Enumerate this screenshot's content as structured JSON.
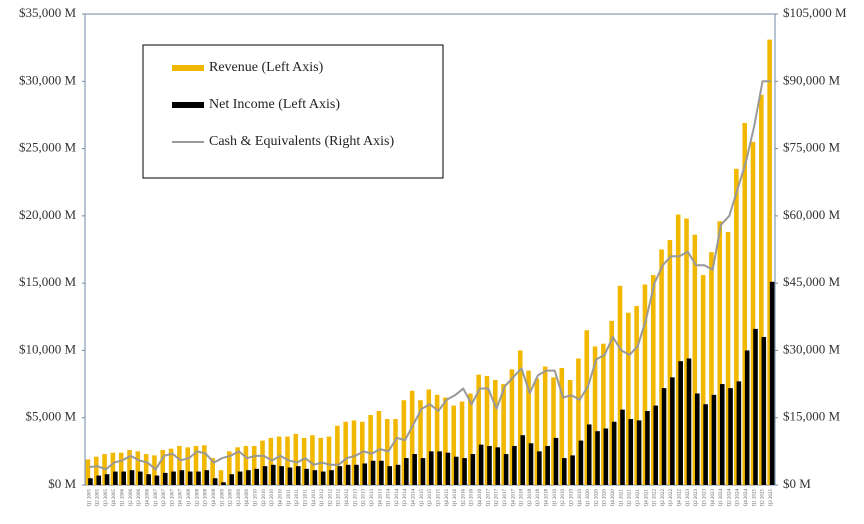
{
  "chart_data": {
    "type": "bar-line-dual-axis",
    "categories": [
      "Q1 2005",
      "Q2 2005",
      "Q3 2005",
      "Q4 2005",
      "Q1 2006",
      "Q2 2006",
      "Q3 2006",
      "Q4 2006",
      "Q1 2007",
      "Q2 2007",
      "Q3 2007",
      "Q4 2007",
      "Q1 2008",
      "Q2 2008",
      "Q3 2008",
      "Q4 2008",
      "Q1 2009",
      "Q2 2009",
      "Q3 2009",
      "Q4 2009",
      "Q1 2010",
      "Q2 2010",
      "Q3 2010",
      "Q4 2010",
      "Q1 2011",
      "Q2 2011",
      "Q3 2011",
      "Q4 2011",
      "Q1 2012",
      "Q2 2012",
      "Q3 2012",
      "Q4 2012",
      "Q1 2013",
      "Q2 2013",
      "Q3 2013",
      "Q4 2013",
      "Q1 2014",
      "Q2 2014",
      "Q3 2014",
      "Q4 2014",
      "Q1 2015",
      "Q2 2015",
      "Q3 2015",
      "Q4 2015",
      "Q1 2016",
      "Q2 2016",
      "Q3 2016",
      "Q4 2016",
      "Q1 2017",
      "Q2 2017",
      "Q3 2017",
      "Q4 2017",
      "Q1 2018",
      "Q2 2018",
      "Q3 2018",
      "Q4 2018",
      "Q1 2019",
      "Q2 2019",
      "Q3 2019",
      "Q4 2019",
      "Q1 2020",
      "Q2 2020",
      "Q3 2020",
      "Q4 2020",
      "Q1 2021",
      "Q2 2021",
      "Q3 2021",
      "Q4 2021",
      "Q1 2022",
      "Q2 2022",
      "Q3 2022",
      "Q4 2022",
      "Q1 2023",
      "Q2 2023",
      "Q3 2023",
      "Q4 2023",
      "Q1 2024",
      "Q2 2024",
      "Q3 2024",
      "Q4 2024",
      "Q1 2025",
      "Q2 2025",
      "Q3 2025"
    ],
    "series": [
      {
        "name": "Revenue (Left Axis)",
        "color": "#f2b800",
        "kind": "bar",
        "values": [
          1900,
          2100,
          2300,
          2400,
          2400,
          2600,
          2500,
          2300,
          2200,
          2600,
          2700,
          2900,
          2800,
          2900,
          2950,
          2000,
          1100,
          2500,
          2800,
          2900,
          2900,
          3300,
          3500,
          3600,
          3600,
          3800,
          3500,
          3700,
          3500,
          3600,
          4400,
          4700,
          4800,
          4700,
          5200,
          5500,
          4900,
          4900,
          6300,
          7000,
          6300,
          7100,
          6700,
          6500,
          5900,
          6200,
          6800,
          8200,
          8100,
          7800,
          7500,
          8600,
          10000,
          8500,
          7900,
          8800,
          8000,
          8700,
          7800,
          9400,
          11500,
          10300,
          10500,
          12200,
          14800,
          12800,
          13300,
          14900,
          15600,
          17500,
          18200,
          20100,
          19800,
          18600,
          15600,
          17300,
          19600,
          18800,
          23500,
          26900,
          25500,
          29000,
          33100
        ]
      },
      {
        "name": "Net Income (Left Axis)",
        "color": "#000000",
        "kind": "bar",
        "values": [
          500,
          700,
          800,
          1000,
          1000,
          1100,
          1000,
          800,
          700,
          900,
          1000,
          1100,
          1000,
          1000,
          1100,
          500,
          200,
          800,
          1000,
          1100,
          1200,
          1400,
          1500,
          1400,
          1300,
          1400,
          1200,
          1100,
          1000,
          1100,
          1400,
          1500,
          1500,
          1600,
          1800,
          1800,
          1400,
          1500,
          2000,
          2300,
          2000,
          2500,
          2500,
          2400,
          2100,
          2000,
          2300,
          3000,
          2900,
          2800,
          2300,
          2900,
          3700,
          3100,
          2500,
          2900,
          3500,
          2000,
          2200,
          3300,
          4500,
          4000,
          4200,
          4700,
          5600,
          4900,
          4800,
          5500,
          5900,
          7200,
          8000,
          9200,
          9400,
          6800,
          6000,
          6700,
          7500,
          7200,
          7700,
          10000,
          11600,
          11000,
          15100
        ]
      },
      {
        "name": "Cash & Equivalents (Right Axis)",
        "color": "#999999",
        "kind": "line",
        "axis": "y2",
        "values": [
          4000,
          4200,
          3500,
          5000,
          5500,
          6500,
          5500,
          5000,
          3500,
          6500,
          7000,
          5500,
          6000,
          7500,
          7000,
          5000,
          6000,
          6500,
          7500,
          6000,
          6500,
          6500,
          5500,
          6500,
          5500,
          5000,
          6000,
          4500,
          5000,
          4500,
          4500,
          6000,
          6500,
          7500,
          7000,
          8000,
          7500,
          10500,
          10000,
          13500,
          17000,
          18000,
          16500,
          19000,
          20000,
          21500,
          18000,
          21500,
          21500,
          17000,
          22000,
          24000,
          26000,
          20500,
          24500,
          25500,
          25500,
          19500,
          20000,
          19000,
          22000,
          28000,
          29000,
          33000,
          30000,
          29000,
          31000,
          37000,
          45000,
          49000,
          51000,
          51000,
          52000,
          49000,
          49000,
          48000,
          58000,
          60000,
          66000,
          72000,
          80000,
          90000,
          90000
        ]
      }
    ],
    "ylim": [
      0,
      35000
    ],
    "yticks": [
      {
        "value": 0,
        "label": "$0 M"
      },
      {
        "value": 5000,
        "label": "$5,000 M"
      },
      {
        "value": 10000,
        "label": "$10,000 M"
      },
      {
        "value": 15000,
        "label": "$15,000 M"
      },
      {
        "value": 20000,
        "label": "$20,000 M"
      },
      {
        "value": 25000,
        "label": "$25,000 M"
      },
      {
        "value": 30000,
        "label": "$30,000 M"
      },
      {
        "value": 35000,
        "label": "$35,000 M"
      }
    ],
    "y2lim": [
      0,
      105000
    ],
    "y2ticks": [
      {
        "value": 0,
        "label": "$0 M"
      },
      {
        "value": 15000,
        "label": "$15,000 M"
      },
      {
        "value": 30000,
        "label": "$30,000 M"
      },
      {
        "value": 45000,
        "label": "$45,000 M"
      },
      {
        "value": 60000,
        "label": "$60,000 M"
      },
      {
        "value": 75000,
        "label": "$75,000 M"
      },
      {
        "value": 90000,
        "label": "$90,000 M"
      },
      {
        "value": 105000,
        "label": "$105,000 M"
      }
    ],
    "grid": false,
    "legend": "upper left"
  }
}
